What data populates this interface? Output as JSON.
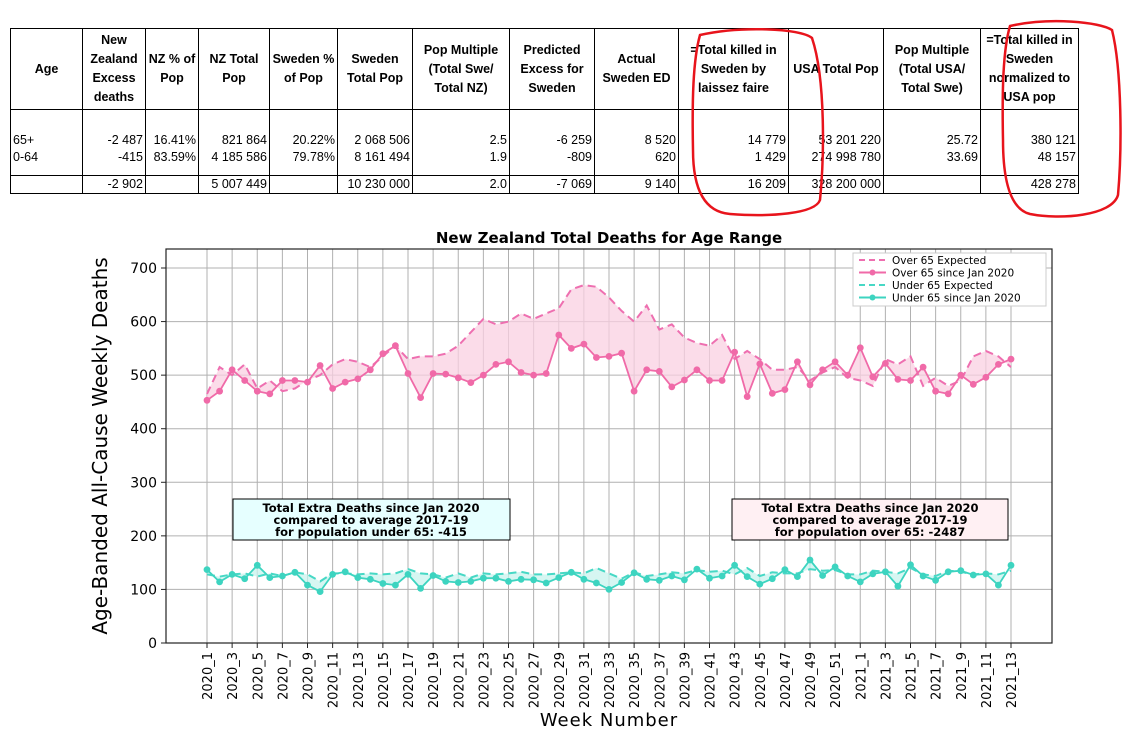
{
  "table": {
    "headers": [
      "Age",
      "New Zealand Excess deaths",
      "NZ % of Pop",
      "NZ Total Pop",
      "Sweden % of Pop",
      "Sweden Total Pop",
      "Pop Multiple (Total Swe/ Total NZ)",
      "Predicted Excess for Sweden",
      "Actual Sweden ED",
      "=Total killed in Sweden by laissez faire",
      "USA Total Pop",
      "Pop Multiple (Total USA/ Total Swe)",
      "=Total killed in Sweden normalized to USA pop"
    ],
    "rows": [
      [
        "65+",
        "-2 487",
        "16.41%",
        "821 864",
        "20.22%",
        "2 068 506",
        "2.5",
        "-6 259",
        "8 520",
        "14 779",
        "53 201 220",
        "25.72",
        "380 121"
      ],
      [
        "0-64",
        "-415",
        "83.59%",
        "4 185 586",
        "79.78%",
        "8 161 494",
        "1.9",
        "-809",
        "620",
        "1 429",
        "274 998 780",
        "33.69",
        "48 157"
      ]
    ],
    "total_row": [
      "",
      "-2 902",
      "",
      "5 007 449",
      "",
      "10 230 000",
      "2.0",
      "-7 069",
      "9 140",
      "16 209",
      "328 200 000",
      "",
      "428 278"
    ]
  },
  "chart_data": {
    "type": "line",
    "title": "New Zealand Total Deaths for Age Range",
    "xlabel": "Week Number",
    "ylabel": "Age-Banded All-Cause Weekly Deaths",
    "ylim": [
      0,
      720
    ],
    "yticks": [
      0,
      100,
      200,
      300,
      400,
      500,
      600,
      700
    ],
    "grid": true,
    "legend_position": "top-right",
    "categories": [
      "2020_1",
      "2020_2",
      "2020_3",
      "2020_4",
      "2020_5",
      "2020_6",
      "2020_7",
      "2020_8",
      "2020_9",
      "2020_10",
      "2020_11",
      "2020_12",
      "2020_13",
      "2020_14",
      "2020_15",
      "2020_16",
      "2020_17",
      "2020_18",
      "2020_19",
      "2020_20",
      "2020_21",
      "2020_22",
      "2020_23",
      "2020_24",
      "2020_25",
      "2020_26",
      "2020_27",
      "2020_28",
      "2020_29",
      "2020_30",
      "2020_31",
      "2020_32",
      "2020_33",
      "2020_34",
      "2020_35",
      "2020_36",
      "2020_37",
      "2020_38",
      "2020_39",
      "2020_40",
      "2020_41",
      "2020_42",
      "2020_43",
      "2020_44",
      "2020_45",
      "2020_46",
      "2020_47",
      "2020_48",
      "2020_49",
      "2020_50",
      "2020_51",
      "2020_52",
      "2021_1",
      "2021_2",
      "2021_3",
      "2021_4",
      "2021_5",
      "2021_6",
      "2021_7",
      "2021_8",
      "2021_9",
      "2021_10",
      "2021_11",
      "2021_12",
      "2021_13"
    ],
    "tick_labels": [
      "2020_1",
      "2020_3",
      "2020_5",
      "2020_7",
      "2020_9",
      "2020_11",
      "2020_13",
      "2020_15",
      "2020_17",
      "2020_19",
      "2020_21",
      "2020_23",
      "2020_25",
      "2020_27",
      "2020_29",
      "2020_31",
      "2020_33",
      "2020_35",
      "2020_37",
      "2020_39",
      "2020_41",
      "2020_43",
      "2020_45",
      "2020_47",
      "2020_49",
      "2020_51",
      "2021_1",
      "2021_3",
      "2021_5",
      "2021_7",
      "2021_9",
      "2021_11",
      "2021_13"
    ],
    "series": [
      {
        "name": "Over 65 Expected",
        "color": "#ee6fb0",
        "style": "dashed",
        "values": [
          465,
          515,
          500,
          520,
          475,
          490,
          470,
          475,
          490,
          500,
          520,
          530,
          525,
          515,
          535,
          555,
          530,
          535,
          535,
          540,
          555,
          580,
          605,
          595,
          600,
          615,
          605,
          615,
          625,
          660,
          668,
          665,
          645,
          620,
          600,
          630,
          585,
          595,
          570,
          560,
          555,
          575,
          530,
          545,
          530,
          510,
          510,
          515,
          490,
          505,
          515,
          495,
          490,
          480,
          530,
          520,
          535,
          480,
          495,
          480,
          490,
          535,
          545,
          535,
          515
        ]
      },
      {
        "name": "Over 65 since Jan 2020",
        "color": "#f06aa8",
        "style": "solid",
        "values": [
          453,
          470,
          510,
          490,
          470,
          465,
          490,
          490,
          487,
          518,
          475,
          487,
          493,
          510,
          540,
          555,
          503,
          458,
          503,
          502,
          495,
          486,
          500,
          520,
          525,
          505,
          500,
          503,
          575,
          550,
          558,
          533,
          535,
          541,
          470,
          510,
          507,
          478,
          491,
          510,
          490,
          490,
          543,
          460,
          521,
          466,
          473,
          525,
          482,
          510,
          525,
          500,
          551,
          497,
          522,
          492,
          490,
          515,
          470,
          465,
          500,
          483,
          496,
          520,
          530
        ]
      },
      {
        "name": "Under 65 Expected",
        "color": "#47d8c5",
        "style": "dashed",
        "values": [
          128,
          124,
          128,
          130,
          124,
          130,
          125,
          132,
          128,
          115,
          130,
          130,
          128,
          130,
          128,
          130,
          138,
          130,
          128,
          122,
          130,
          122,
          130,
          128,
          130,
          133,
          128,
          128,
          130,
          132,
          130,
          140,
          130,
          120,
          132,
          125,
          128,
          132,
          130,
          136,
          133,
          135,
          128,
          140,
          125,
          132,
          130,
          130,
          138,
          135,
          136,
          128,
          128,
          135,
          133,
          130,
          140,
          128,
          125,
          135,
          133,
          128,
          130,
          128,
          135
        ]
      },
      {
        "name": "Under 65 since Jan 2020",
        "color": "#3dd4c0",
        "style": "solid",
        "values": [
          137,
          114,
          128,
          120,
          145,
          122,
          125,
          132,
          108,
          96,
          128,
          133,
          122,
          119,
          111,
          108,
          128,
          102,
          126,
          115,
          113,
          115,
          121,
          121,
          115,
          119,
          118,
          112,
          122,
          132,
          119,
          112,
          100,
          113,
          131,
          119,
          117,
          125,
          118,
          138,
          121,
          125,
          145,
          124,
          110,
          120,
          137,
          124,
          155,
          126,
          142,
          125,
          114,
          129,
          133,
          106,
          146,
          125,
          117,
          133,
          135,
          127,
          129,
          108,
          145
        ]
      }
    ],
    "annotations": [
      {
        "text": [
          "Total Extra Deaths since Jan 2020",
          "compared to average 2017-19",
          "for population under 65: -415"
        ],
        "color": "#e6ffff"
      },
      {
        "text": [
          "Total Extra Deaths since Jan 2020",
          "compared to average 2017-19",
          "for population over 65: -2487"
        ],
        "color": "#fff0f3"
      }
    ]
  },
  "colors": {
    "highlight_circle": "#e8141c",
    "grid": "#b0b0b0",
    "pink_fill": "#f9d0e2",
    "cyan_fill": "#c8f3ee"
  }
}
